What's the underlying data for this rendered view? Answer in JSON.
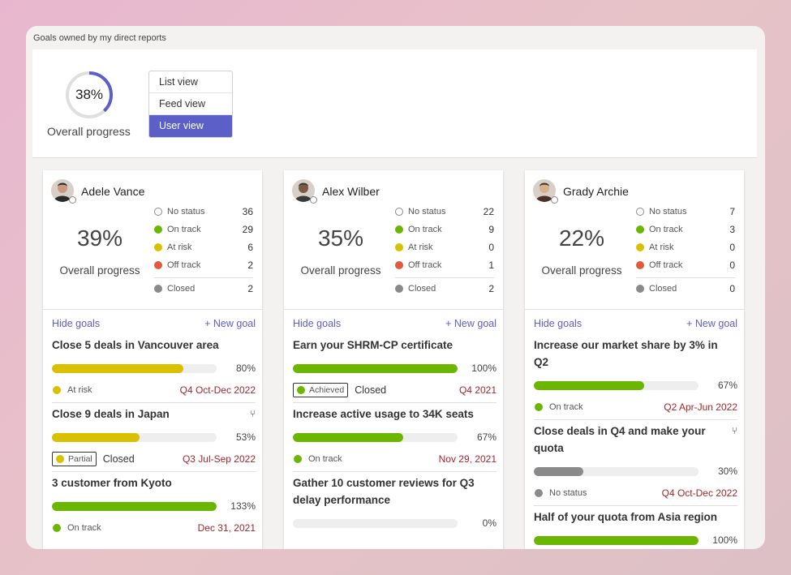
{
  "window_title": "Goals owned by my direct reports",
  "summary": {
    "overall_pct": "38%",
    "overall_value": 0.38,
    "overall_label": "Overall progress"
  },
  "views": [
    {
      "label": "List view",
      "active": false
    },
    {
      "label": "Feed view",
      "active": false
    },
    {
      "label": "User view",
      "active": true
    }
  ],
  "colors": {
    "accent": "#5b5fc7",
    "on_track": "#6bb700",
    "at_risk": "#d9c000",
    "off_track": "#e05a3b",
    "closed": "#8a8a8a",
    "date": "#a4262c"
  },
  "cards": [
    {
      "name": "Adele Vance",
      "pct": "39%",
      "pct_label": "Overall progress",
      "stats": {
        "no_status": "36",
        "on_track": "29",
        "at_risk": "6",
        "off_track": "2",
        "closed": "2"
      },
      "hide_goals": "Hide goals",
      "new_goal": "+ New goal",
      "goals": [
        {
          "title": "Close 5 deals in Vancouver area",
          "pct": "80%",
          "value": 0.8,
          "color": "#d9c000",
          "status": "At risk",
          "status_dot": "risk",
          "date": "Q4 Oct-Dec 2022",
          "badge": "",
          "closed": ""
        },
        {
          "title": "Close 9 deals in Japan",
          "pct": "53%",
          "value": 0.53,
          "color": "#d9c000",
          "status": "",
          "status_dot": "",
          "date": "Q3 Jul-Sep 2022",
          "badge": "Partial",
          "badge_dot": "risk",
          "closed": "Closed",
          "subicon": "subgoal-icon"
        },
        {
          "title": "3 customer from Kyoto",
          "pct": "133%",
          "value": 1.0,
          "color": "#6bb700",
          "status": "On track",
          "status_dot": "on",
          "date": "Dec 31, 2021",
          "badge": "",
          "closed": ""
        }
      ]
    },
    {
      "name": "Alex Wilber",
      "pct": "35%",
      "pct_label": "Overall progress",
      "stats": {
        "no_status": "22",
        "on_track": "9",
        "at_risk": "0",
        "off_track": "1",
        "closed": "2"
      },
      "hide_goals": "Hide goals",
      "new_goal": "+ New goal",
      "goals": [
        {
          "title": "Earn your SHRM-CP certificate",
          "pct": "100%",
          "value": 1.0,
          "color": "#6bb700",
          "status": "",
          "status_dot": "",
          "date": "Q4 2021",
          "badge": "Achieved",
          "badge_dot": "on",
          "closed": "Closed"
        },
        {
          "title": "Increase active usage to 34K seats",
          "pct": "67%",
          "value": 0.67,
          "color": "#6bb700",
          "status": "On track",
          "status_dot": "on",
          "date": "Nov 29, 2021",
          "badge": "",
          "closed": ""
        },
        {
          "title": "Gather 10 customer reviews for Q3 delay performance",
          "pct": "0%",
          "value": 0.0,
          "color": "#6bb700",
          "status": "",
          "status_dot": "",
          "date": "",
          "badge": "",
          "closed": ""
        }
      ]
    },
    {
      "name": "Grady Archie",
      "pct": "22%",
      "pct_label": "Overall progress",
      "stats": {
        "no_status": "7",
        "on_track": "3",
        "at_risk": "0",
        "off_track": "0",
        "closed": "0"
      },
      "hide_goals": "Hide goals",
      "new_goal": "+ New goal",
      "goals": [
        {
          "title": "Increase our market share by 3% in Q2",
          "pct": "67%",
          "value": 0.67,
          "color": "#6bb700",
          "status": "On track",
          "status_dot": "on",
          "date": "Q2 Apr-Jun 2022",
          "badge": "",
          "closed": ""
        },
        {
          "title": "Close deals in Q4 and make your quota",
          "pct": "30%",
          "value": 0.3,
          "color": "#8a8a8a",
          "status": "No status",
          "status_dot": "closed",
          "date": "Q4 Oct-Dec 2022",
          "badge": "",
          "closed": "",
          "subicon": "subgoal-icon"
        },
        {
          "title": "Half of your quota from Asia region",
          "pct": "100%",
          "value": 1.0,
          "color": "#6bb700",
          "status": "",
          "status_dot": "",
          "date": "",
          "badge": "",
          "closed": ""
        }
      ]
    }
  ],
  "stat_labels": {
    "no_status": "No status",
    "on_track": "On track",
    "at_risk": "At risk",
    "off_track": "Off track",
    "closed": "Closed"
  }
}
